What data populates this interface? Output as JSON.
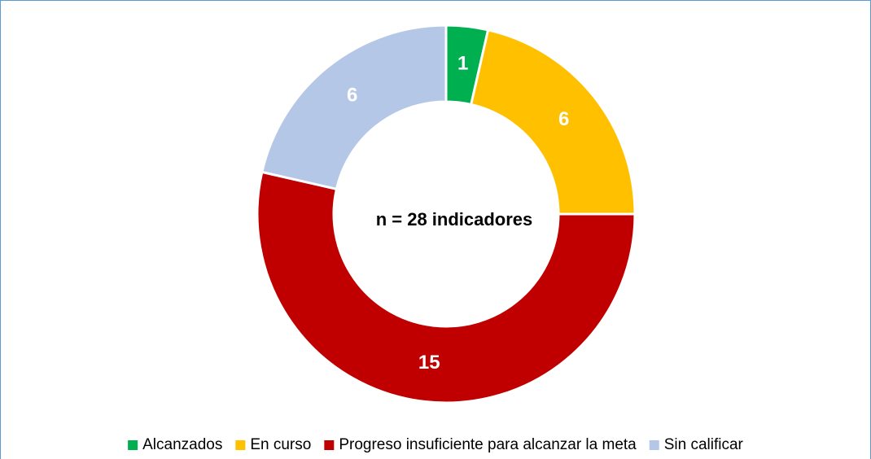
{
  "chart_data": {
    "type": "donut",
    "center_label": "n = 28 indicadores",
    "categories": [
      "Alcanzados",
      "En curso",
      "Progreso insuficiente para alcanzar la meta",
      "Sin calificar"
    ],
    "values": [
      1,
      6,
      15,
      6
    ],
    "colors": [
      "#00b050",
      "#ffc000",
      "#c00000",
      "#b4c7e7"
    ],
    "legend": "bottom"
  }
}
